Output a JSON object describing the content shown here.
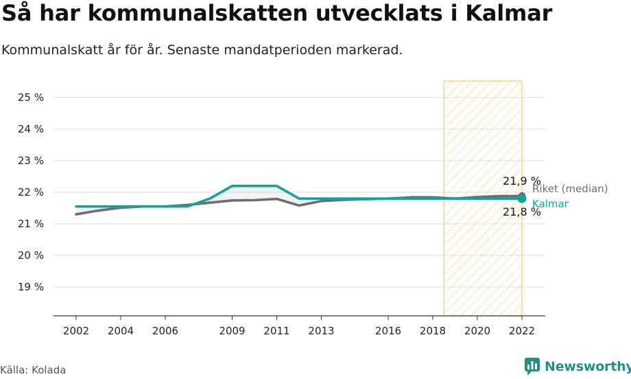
{
  "title": "Så har kommunalskatten utvecklats i Kalmar",
  "subtitle": "Kommunalskatt år för år. Senaste mandatperioden markerad.",
  "source": "Källa: Kolada",
  "brand": {
    "name": "Newsworthy",
    "icon": "newsworthy-logo-icon",
    "color": "#1f8f88"
  },
  "colors": {
    "kalmar": "#14a39a",
    "riket": "#6f6c72",
    "highlight": "#f7c948",
    "grid": "#dddddd"
  },
  "chart_data": {
    "type": "line",
    "title": "Så har kommunalskatten utvecklats i Kalmar",
    "xlabel": "",
    "ylabel": "",
    "xlim": [
      2002,
      2022
    ],
    "ylim": [
      18.2,
      25.5
    ],
    "x_ticks": [
      2002,
      2004,
      2006,
      2009,
      2011,
      2013,
      2016,
      2018,
      2020,
      2022
    ],
    "x_tick_labels": [
      "2002",
      "2004",
      "2006",
      "2009",
      "2011",
      "2013",
      "2016",
      "2018",
      "2020",
      "2022"
    ],
    "y_ticks": [
      19,
      20,
      21,
      22,
      23,
      24,
      25
    ],
    "y_tick_labels": [
      "19 %",
      "20 %",
      "21 %",
      "22 %",
      "23 %",
      "24 %",
      "25 %"
    ],
    "grid": true,
    "highlight_period": [
      2018.5,
      2022
    ],
    "x": [
      2002,
      2003,
      2004,
      2005,
      2006,
      2007,
      2008,
      2009,
      2010,
      2011,
      2012,
      2013,
      2014,
      2015,
      2016,
      2017,
      2018,
      2019,
      2020,
      2021,
      2022
    ],
    "series": [
      {
        "name": "Riket (median)",
        "color": "#6f6c72",
        "values": [
          21.3,
          21.42,
          21.51,
          21.55,
          21.55,
          21.6,
          21.67,
          21.74,
          21.75,
          21.79,
          21.58,
          21.72,
          21.76,
          21.78,
          21.8,
          21.84,
          21.84,
          21.8,
          21.85,
          21.88,
          21.88
        ],
        "end_label": "21,9 %"
      },
      {
        "name": "Kalmar",
        "color": "#14a39a",
        "values": [
          21.55,
          21.55,
          21.55,
          21.55,
          21.55,
          21.55,
          21.8,
          22.2,
          22.2,
          22.2,
          21.8,
          21.8,
          21.8,
          21.8,
          21.8,
          21.8,
          21.8,
          21.8,
          21.8,
          21.8,
          21.8
        ],
        "end_label": "21,8 %"
      }
    ]
  }
}
